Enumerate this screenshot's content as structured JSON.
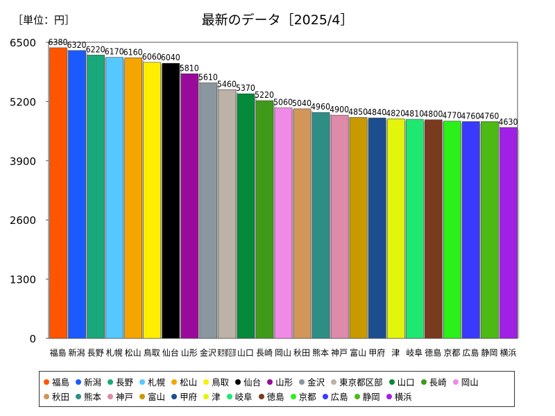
{
  "unit_label": "［単位：円］",
  "chart_data": {
    "type": "bar",
    "title": "最新のデータ［2025/4］",
    "xlabel": "",
    "ylabel": "",
    "ylim": [
      0,
      6500
    ],
    "yticks": [
      0,
      1300,
      2600,
      3900,
      5200,
      6500
    ],
    "grid": false,
    "legend_position": "bottom",
    "categories": [
      "福島",
      "新潟",
      "長野",
      "札幌",
      "松山",
      "鳥取",
      "仙台",
      "山形",
      "金沢",
      "東京都区部",
      "山口",
      "長崎",
      "岡山",
      "秋田",
      "熊本",
      "神戸",
      "富山",
      "甲府",
      "津",
      "岐阜",
      "徳島",
      "京都",
      "広島",
      "静岡",
      "横浜"
    ],
    "values": [
      6380,
      6320,
      6220,
      6170,
      6160,
      6060,
      6040,
      5810,
      5610,
      5460,
      5370,
      5220,
      5060,
      5040,
      4960,
      4900,
      4850,
      4840,
      4820,
      4810,
      4800,
      4770,
      4760,
      4760,
      4630
    ],
    "colors": [
      "#ff5500",
      "#1a5aff",
      "#19a87a",
      "#55c8ff",
      "#f5a500",
      "#ffee00",
      "#000000",
      "#9a0a9a",
      "#8a96a0",
      "#bcb2a8",
      "#05893a",
      "#3f9a1a",
      "#f08ae6",
      "#d2965a",
      "#2e8e86",
      "#de8aaa",
      "#c89a00",
      "#1c4e8e",
      "#e2f50a",
      "#1ee870",
      "#7a3a1e",
      "#2bf01a",
      "#3a3aff",
      "#4cba14",
      "#a020e6"
    ]
  }
}
